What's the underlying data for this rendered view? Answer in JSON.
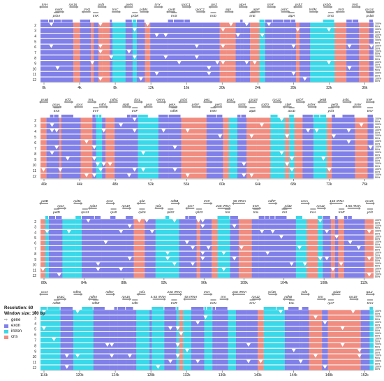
{
  "legend": {
    "resolution": "Resolution: 60",
    "window": "Window size: 100 bp",
    "items": [
      "gene",
      "exon",
      "intron",
      "cns"
    ]
  },
  "colors": {
    "exon": "#8080e8",
    "intron": "#3ad8e8",
    "cns": "#f08c80",
    "gene_arrow": "#888888",
    "text": "#111111"
  },
  "track_labels": [
    "2",
    "3",
    "4",
    "5",
    "6",
    "7",
    "8",
    "9",
    "10",
    "11",
    "12"
  ],
  "pct_labels": [
    "100%",
    "50%"
  ],
  "panels": [
    {
      "ticks": [
        "0k",
        "4k",
        "8k",
        "12k",
        "16k",
        "20k",
        "24k",
        "28k",
        "32k",
        "36k"
      ],
      "genes_top": [
        "trnH",
        "matK",
        "rps16",
        "trnQ",
        "psbI",
        "trnC",
        "petN",
        "psbM",
        "trnY",
        "rpoB",
        "rpoC1",
        "rpoC2",
        "rps2",
        "atpI",
        "atpH",
        "atpF",
        "trnR",
        "psbC",
        "psbZ",
        "trnfM",
        "psbD",
        "trnS",
        "trnG",
        "rps14"
      ],
      "genes_bottom": [
        "psbA",
        "trnK",
        "psbK",
        "trnS",
        "trnD",
        "trnE",
        "atpA",
        "trnG",
        "psbB"
      ]
    },
    {
      "ticks": [
        "40k",
        "44k",
        "48k",
        "52k",
        "56k",
        "60k",
        "64k",
        "68k",
        "72k",
        "76k"
      ],
      "genes_top": [
        "psaB",
        "psaA",
        "ycf3",
        "rps4",
        "trnL",
        "ndhJ",
        "ndhC",
        "atpB",
        "rbcL",
        "psaI",
        "cemA",
        "petA",
        "psbJ",
        "psbF",
        "petL",
        "petG",
        "psaJ",
        "rpl33",
        "rps18",
        "rpl20",
        "rps12",
        "clpP",
        "psbT",
        "psbH",
        "petB",
        "petD",
        "psbL",
        "trnW",
        "trnP"
      ],
      "genes_bottom": [
        "trnS",
        "trnT",
        "trnF",
        "ndhK",
        "trnM",
        "atpE",
        "accD",
        "ycf4",
        "trnV"
      ]
    },
    {
      "ticks": [
        "80k",
        "84k",
        "88k",
        "92k",
        "96k",
        "100k",
        "104k",
        "108k",
        "112k"
      ],
      "genes_top": [
        "petB",
        "rpoA",
        "rpl36",
        "rpl14",
        "rps3",
        "rps19",
        "rpl2",
        "ycf2",
        "ndhB",
        "rps7",
        "trnV",
        "23S rRNA",
        "5S rRNA",
        "trnN",
        "ndhF",
        "rpl32",
        "ccsA",
        "rps12",
        "16S rRNA",
        "4.5S rRNA",
        "rps15"
      ],
      "genes_bottom": [
        "petD",
        "rps11",
        "rps8",
        "rpl16",
        "rpl22",
        "rpl23",
        "trnI",
        "trnL",
        "trnI",
        "trnA",
        "trnR",
        "ycf1"
      ]
    },
    {
      "ticks": [
        "116k",
        "120k",
        "124k",
        "128k",
        "132k",
        "136k",
        "140k",
        "144k",
        "148k",
        "152k"
      ],
      "genes_top": [
        "ccsA",
        "psaC",
        "ndhG",
        "ndhA",
        "ndhH",
        "rps15",
        "ycf1",
        "4.5S rRNA",
        "23S rRNA",
        "5S rRNA",
        "trnA",
        "trnI",
        "16S rRNA",
        "rps12",
        "ycf15",
        "ndhB",
        "ycf2",
        "trnI",
        "rpl23",
        "rps19",
        "rpL2"
      ],
      "genes_bottom": [
        "ndhD",
        "ndhE",
        "ndhI",
        "trnR",
        "trnN",
        "trnV",
        "trnL",
        "rps7",
        "trnH"
      ]
    }
  ]
}
